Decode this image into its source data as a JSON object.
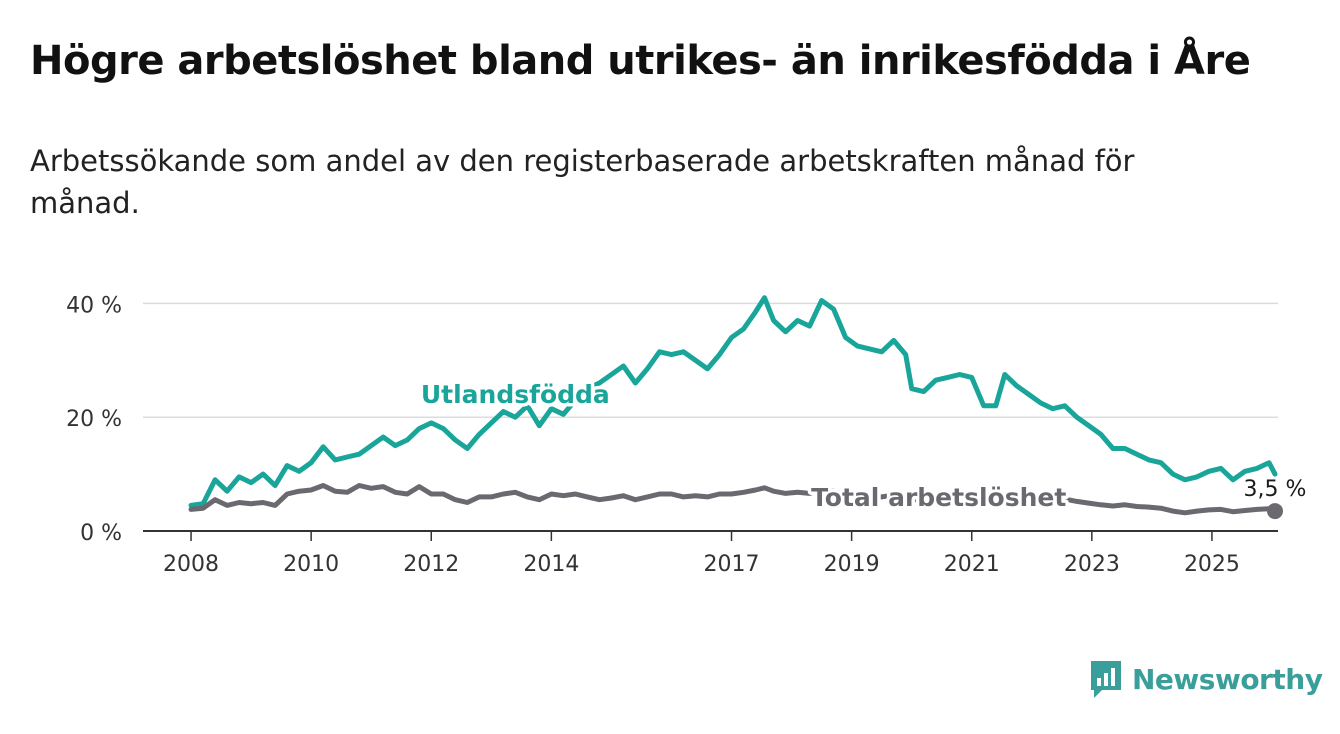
{
  "title": "Högre arbetslöshet bland utrikes- än inrikesfödda i Åre",
  "subtitle": "Arbetssökande som andel av den registerbaserade arbetskraften månad för månad.",
  "brand": {
    "name": "Newsworthy",
    "icon": "newsworthy-logo-icon",
    "color": "#3a9e9a"
  },
  "chart_data": {
    "type": "line",
    "x_ticks": [
      "2008",
      "2010",
      "2012",
      "2014",
      "2017",
      "2019",
      "2021",
      "2023",
      "2025"
    ],
    "y_ticks": [
      "0 %",
      "20 %",
      "40 %"
    ],
    "y_tick_values": [
      0,
      20,
      40
    ],
    "ylim": [
      0,
      42
    ],
    "xlim": [
      2007.2,
      2026.1
    ],
    "grid": true,
    "end_label": "3,5 %",
    "series": [
      {
        "name": "Utlandsfödda",
        "color": "#19a59a",
        "points": [
          [
            2008.0,
            4.5
          ],
          [
            2008.2,
            4.8
          ],
          [
            2008.4,
            9.0
          ],
          [
            2008.6,
            7.0
          ],
          [
            2008.8,
            9.5
          ],
          [
            2009.0,
            8.5
          ],
          [
            2009.2,
            10.0
          ],
          [
            2009.4,
            8.0
          ],
          [
            2009.6,
            11.5
          ],
          [
            2009.8,
            10.5
          ],
          [
            2010.0,
            12.0
          ],
          [
            2010.2,
            14.8
          ],
          [
            2010.4,
            12.5
          ],
          [
            2010.6,
            13.0
          ],
          [
            2010.8,
            13.5
          ],
          [
            2011.0,
            15.0
          ],
          [
            2011.2,
            16.5
          ],
          [
            2011.4,
            15.0
          ],
          [
            2011.6,
            16.0
          ],
          [
            2011.8,
            18.0
          ],
          [
            2012.0,
            19.0
          ],
          [
            2012.2,
            18.0
          ],
          [
            2012.4,
            16.0
          ],
          [
            2012.6,
            14.5
          ],
          [
            2012.8,
            17.0
          ],
          [
            2013.0,
            19.0
          ],
          [
            2013.2,
            21.0
          ],
          [
            2013.4,
            20.0
          ],
          [
            2013.6,
            22.0
          ],
          [
            2013.8,
            18.5
          ],
          [
            2014.0,
            21.5
          ],
          [
            2014.2,
            20.5
          ],
          [
            2014.4,
            23.0
          ],
          [
            2014.6,
            25.0
          ],
          [
            2014.8,
            26.0
          ],
          [
            2015.0,
            27.5
          ],
          [
            2015.2,
            29.0
          ],
          [
            2015.4,
            26.0
          ],
          [
            2015.6,
            28.5
          ],
          [
            2015.8,
            31.5
          ],
          [
            2016.0,
            31.0
          ],
          [
            2016.2,
            31.5
          ],
          [
            2016.4,
            30.0
          ],
          [
            2016.6,
            28.5
          ],
          [
            2016.8,
            31.0
          ],
          [
            2017.0,
            34.0
          ],
          [
            2017.2,
            35.5
          ],
          [
            2017.4,
            38.5
          ],
          [
            2017.55,
            41.0
          ],
          [
            2017.7,
            37.0
          ],
          [
            2017.9,
            35.0
          ],
          [
            2018.1,
            37.0
          ],
          [
            2018.3,
            36.0
          ],
          [
            2018.5,
            40.5
          ],
          [
            2018.7,
            39.0
          ],
          [
            2018.9,
            34.0
          ],
          [
            2019.1,
            32.5
          ],
          [
            2019.3,
            32.0
          ],
          [
            2019.5,
            31.5
          ],
          [
            2019.7,
            33.5
          ],
          [
            2019.9,
            31.0
          ],
          [
            2020.0,
            25.0
          ],
          [
            2020.2,
            24.5
          ],
          [
            2020.4,
            26.5
          ],
          [
            2020.6,
            27.0
          ],
          [
            2020.8,
            27.5
          ],
          [
            2021.0,
            27.0
          ],
          [
            2021.2,
            22.0
          ],
          [
            2021.4,
            22.0
          ],
          [
            2021.55,
            27.5
          ],
          [
            2021.75,
            25.5
          ],
          [
            2021.95,
            24.0
          ],
          [
            2022.15,
            22.5
          ],
          [
            2022.35,
            21.5
          ],
          [
            2022.55,
            22.0
          ],
          [
            2022.75,
            20.0
          ],
          [
            2022.95,
            18.5
          ],
          [
            2023.15,
            17.0
          ],
          [
            2023.35,
            14.5
          ],
          [
            2023.55,
            14.5
          ],
          [
            2023.75,
            13.5
          ],
          [
            2023.95,
            12.5
          ],
          [
            2024.15,
            12.0
          ],
          [
            2024.35,
            10.0
          ],
          [
            2024.55,
            9.0
          ],
          [
            2024.75,
            9.5
          ],
          [
            2024.95,
            10.5
          ],
          [
            2025.15,
            11.0
          ],
          [
            2025.35,
            9.0
          ],
          [
            2025.55,
            10.5
          ],
          [
            2025.75,
            11.0
          ],
          [
            2025.95,
            12.0
          ],
          [
            2026.05,
            10.0
          ]
        ]
      },
      {
        "name": "Total arbetslöshet",
        "color": "#6b6870",
        "points": [
          [
            2008.0,
            3.8
          ],
          [
            2008.2,
            4.0
          ],
          [
            2008.4,
            5.5
          ],
          [
            2008.6,
            4.5
          ],
          [
            2008.8,
            5.0
          ],
          [
            2009.0,
            4.8
          ],
          [
            2009.2,
            5.0
          ],
          [
            2009.4,
            4.5
          ],
          [
            2009.6,
            6.5
          ],
          [
            2009.8,
            7.0
          ],
          [
            2010.0,
            7.2
          ],
          [
            2010.2,
            8.0
          ],
          [
            2010.4,
            7.0
          ],
          [
            2010.6,
            6.8
          ],
          [
            2010.8,
            8.0
          ],
          [
            2011.0,
            7.5
          ],
          [
            2011.2,
            7.8
          ],
          [
            2011.4,
            6.8
          ],
          [
            2011.6,
            6.5
          ],
          [
            2011.8,
            7.8
          ],
          [
            2012.0,
            6.5
          ],
          [
            2012.2,
            6.5
          ],
          [
            2012.4,
            5.5
          ],
          [
            2012.6,
            5.0
          ],
          [
            2012.8,
            6.0
          ],
          [
            2013.0,
            6.0
          ],
          [
            2013.2,
            6.5
          ],
          [
            2013.4,
            6.8
          ],
          [
            2013.6,
            6.0
          ],
          [
            2013.8,
            5.5
          ],
          [
            2014.0,
            6.5
          ],
          [
            2014.2,
            6.2
          ],
          [
            2014.4,
            6.5
          ],
          [
            2014.6,
            6.0
          ],
          [
            2014.8,
            5.5
          ],
          [
            2015.0,
            5.8
          ],
          [
            2015.2,
            6.2
          ],
          [
            2015.4,
            5.5
          ],
          [
            2015.6,
            6.0
          ],
          [
            2015.8,
            6.5
          ],
          [
            2016.0,
            6.5
          ],
          [
            2016.2,
            6.0
          ],
          [
            2016.4,
            6.2
          ],
          [
            2016.6,
            6.0
          ],
          [
            2016.8,
            6.5
          ],
          [
            2017.0,
            6.5
          ],
          [
            2017.2,
            6.8
          ],
          [
            2017.4,
            7.2
          ],
          [
            2017.55,
            7.6
          ],
          [
            2017.7,
            7.0
          ],
          [
            2017.9,
            6.6
          ],
          [
            2018.1,
            6.8
          ],
          [
            2018.3,
            6.6
          ],
          [
            2018.5,
            7.2
          ],
          [
            2018.7,
            7.0
          ],
          [
            2018.9,
            6.4
          ],
          [
            2019.1,
            6.2
          ],
          [
            2019.3,
            6.0
          ],
          [
            2019.5,
            6.0
          ],
          [
            2019.7,
            6.3
          ],
          [
            2019.9,
            6.0
          ],
          [
            2020.0,
            5.5
          ],
          [
            2020.2,
            5.5
          ],
          [
            2020.4,
            5.7
          ],
          [
            2020.6,
            5.8
          ],
          [
            2020.8,
            6.0
          ],
          [
            2021.0,
            6.2
          ],
          [
            2021.2,
            5.8
          ],
          [
            2021.4,
            5.8
          ],
          [
            2021.55,
            6.5
          ],
          [
            2021.75,
            6.3
          ],
          [
            2021.95,
            6.0
          ],
          [
            2022.15,
            5.8
          ],
          [
            2022.35,
            5.5
          ],
          [
            2022.55,
            5.6
          ],
          [
            2022.75,
            5.2
          ],
          [
            2022.95,
            4.9
          ],
          [
            2023.15,
            4.6
          ],
          [
            2023.35,
            4.4
          ],
          [
            2023.55,
            4.6
          ],
          [
            2023.75,
            4.3
          ],
          [
            2023.95,
            4.2
          ],
          [
            2024.15,
            4.0
          ],
          [
            2024.35,
            3.5
          ],
          [
            2024.55,
            3.2
          ],
          [
            2024.75,
            3.5
          ],
          [
            2024.95,
            3.7
          ],
          [
            2025.15,
            3.8
          ],
          [
            2025.35,
            3.4
          ],
          [
            2025.55,
            3.6
          ],
          [
            2025.75,
            3.8
          ],
          [
            2025.95,
            3.9
          ],
          [
            2026.05,
            3.5
          ]
        ]
      }
    ]
  }
}
